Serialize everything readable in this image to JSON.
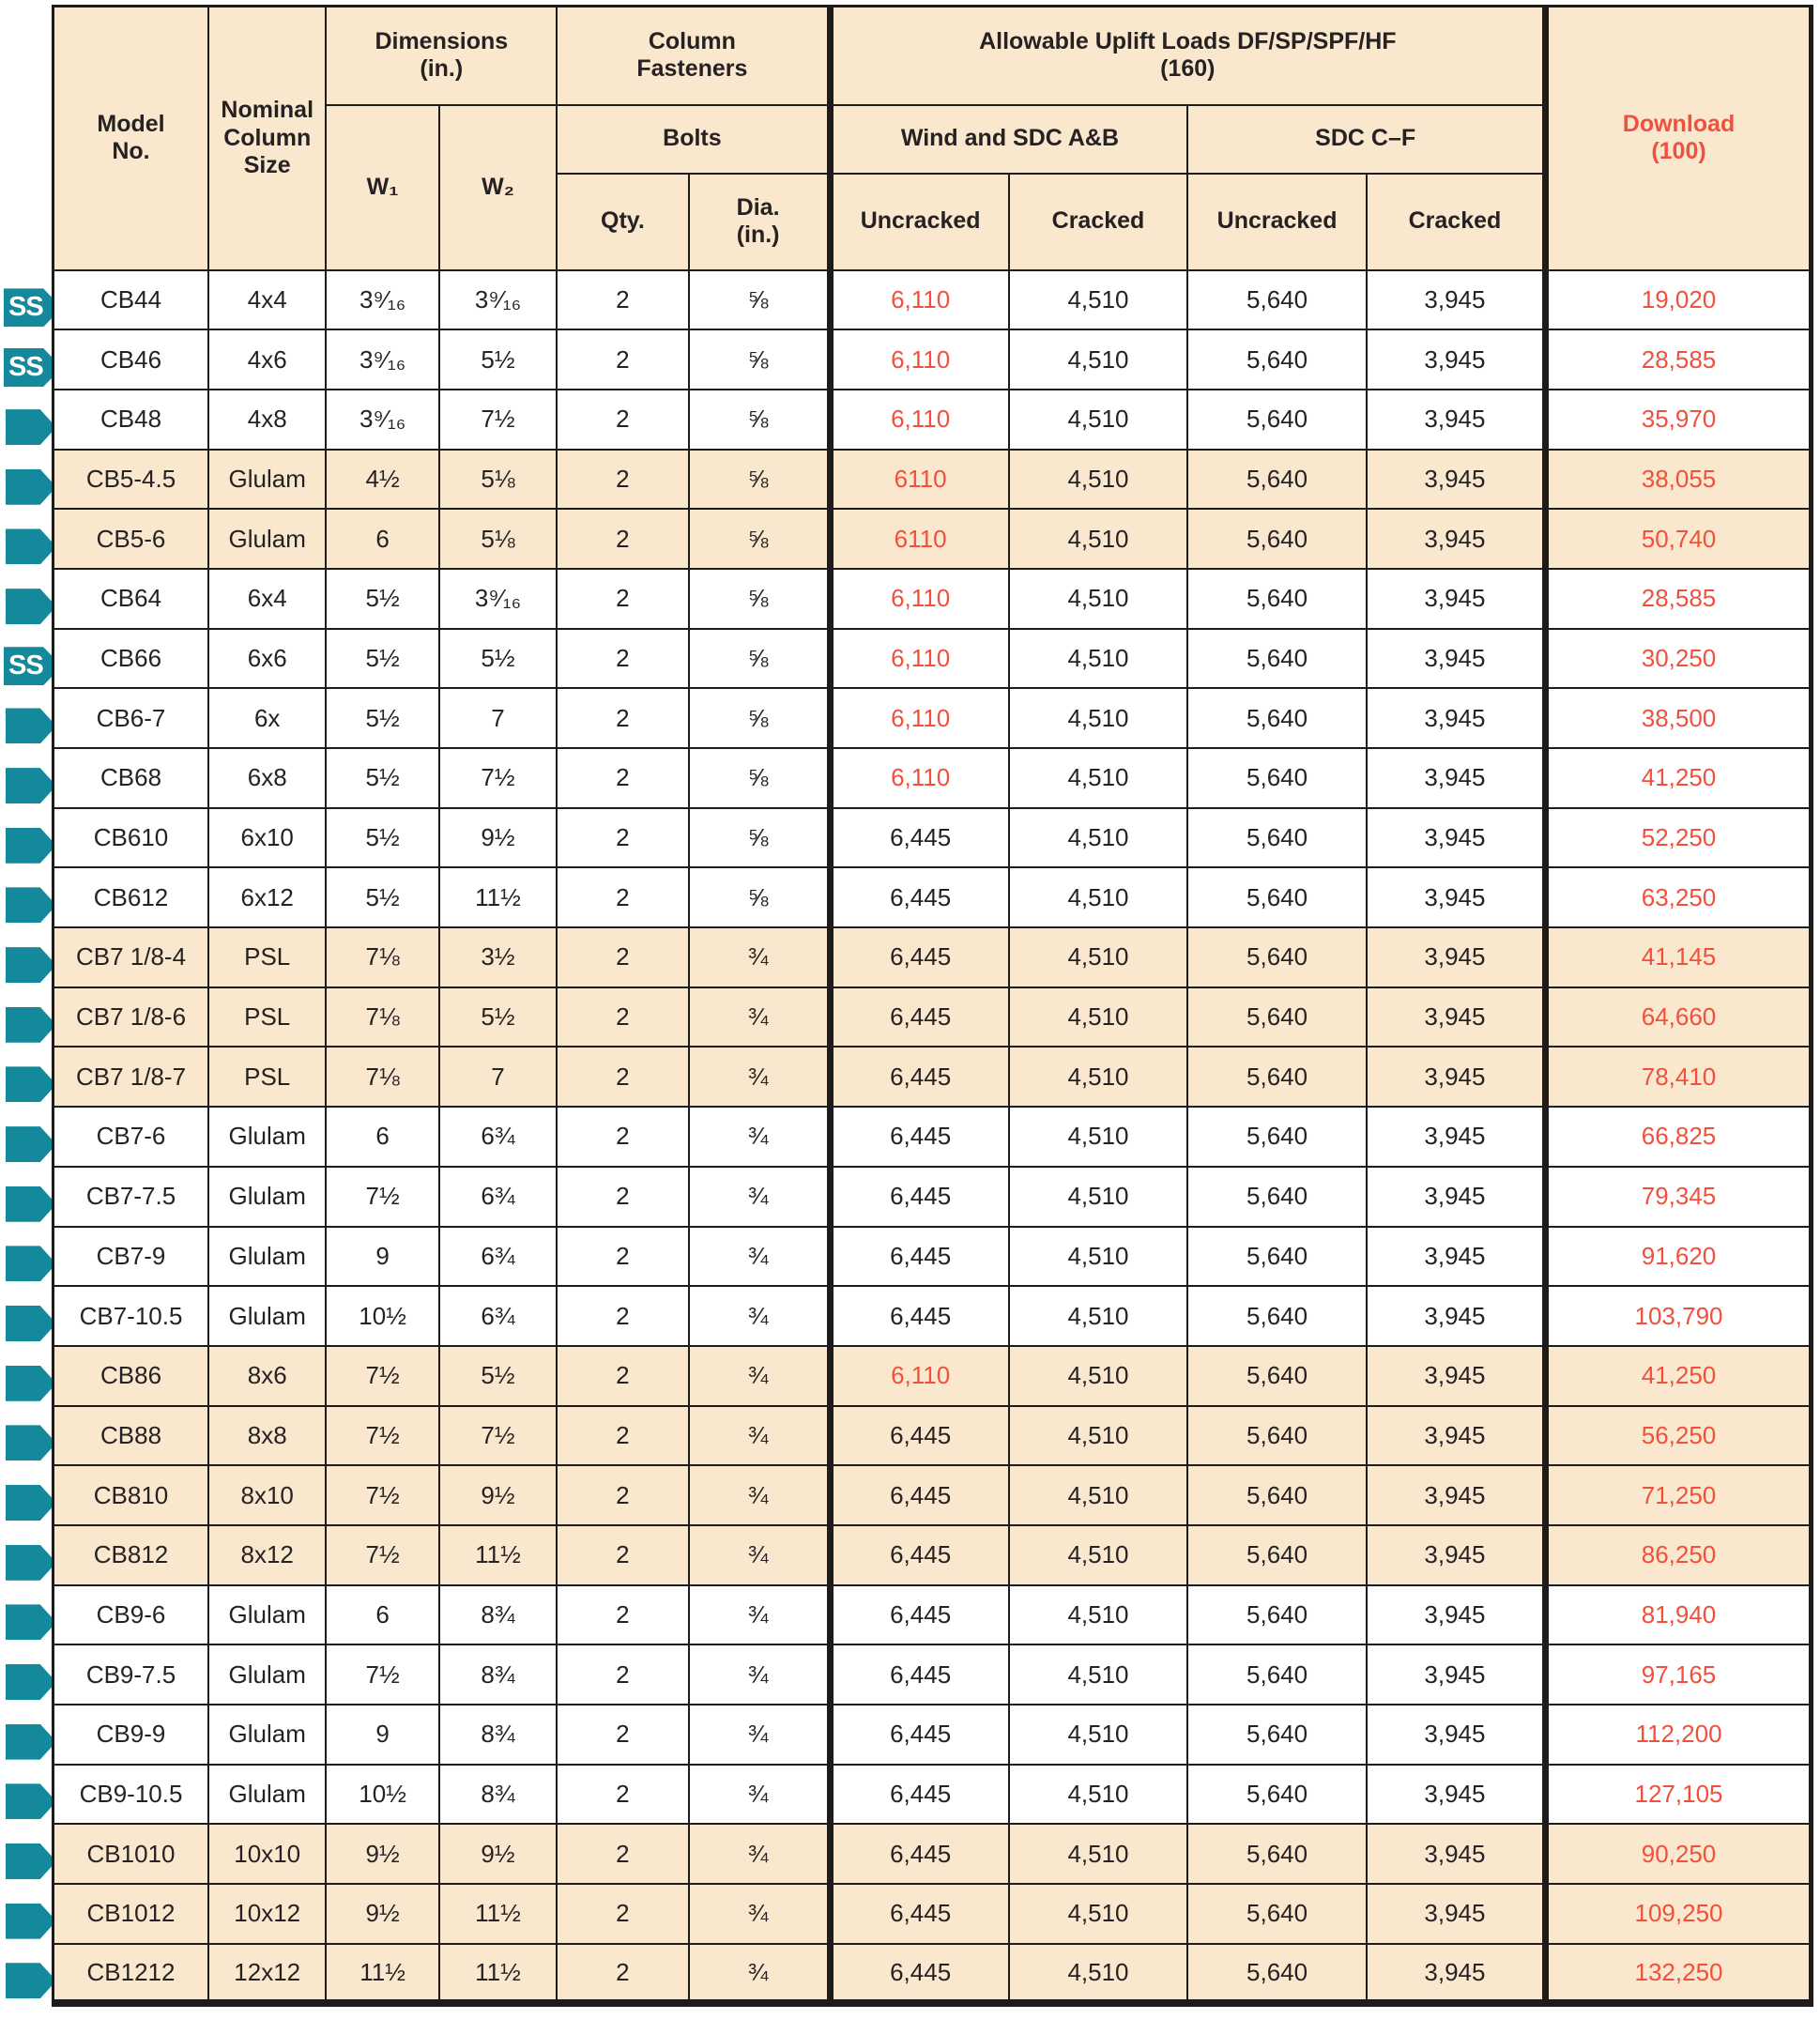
{
  "header": {
    "model_no": "Model\nNo.",
    "nominal_column_size": "Nominal\nColumn\nSize",
    "dimensions": "Dimensions\n(in.)",
    "w1": "W₁",
    "w2": "W₂",
    "column_fasteners": "Column\nFasteners",
    "bolts": "Bolts",
    "qty": "Qty.",
    "dia": "Dia.\n(in.)",
    "allowable_uplift": "Allowable Uplift Loads DF/SP/SPF/HF\n(160)",
    "wind_sdc_ab": "Wind and SDC A&B",
    "sdc_cf": "SDC C–F",
    "uncracked": "Uncracked",
    "cracked": "Cracked",
    "download": "Download\n(100)"
  },
  "legend": {
    "ss_label": "SS"
  },
  "colors": {
    "accent_teal": "#13899b",
    "accent_red": "#f0503c",
    "row_shade": "#fae8ce",
    "text": "#262223"
  },
  "rows": [
    {
      "icon": "ss",
      "shaded": false,
      "model": "CB44",
      "nominal": "4x4",
      "w1": "3⁹⁄₁₆",
      "w2": "3⁹⁄₁₆",
      "qty": "2",
      "dia": "⅝",
      "wind_uncracked": "6,110",
      "wind_uncracked_red": true,
      "wind_cracked": "4,510",
      "sdc_uncracked": "5,640",
      "sdc_cracked": "3,945",
      "download": "19,020"
    },
    {
      "icon": "ss",
      "shaded": false,
      "model": "CB46",
      "nominal": "4x6",
      "w1": "3⁹⁄₁₆",
      "w2": "5½",
      "qty": "2",
      "dia": "⅝",
      "wind_uncracked": "6,110",
      "wind_uncracked_red": true,
      "wind_cracked": "4,510",
      "sdc_uncracked": "5,640",
      "sdc_cracked": "3,945",
      "download": "28,585"
    },
    {
      "icon": "arrow",
      "shaded": false,
      "model": "CB48",
      "nominal": "4x8",
      "w1": "3⁹⁄₁₆",
      "w2": "7½",
      "qty": "2",
      "dia": "⅝",
      "wind_uncracked": "6,110",
      "wind_uncracked_red": true,
      "wind_cracked": "4,510",
      "sdc_uncracked": "5,640",
      "sdc_cracked": "3,945",
      "download": "35,970"
    },
    {
      "icon": "arrow",
      "shaded": true,
      "model": "CB5-4.5",
      "nominal": "Glulam",
      "w1": "4½",
      "w2": "5⅛",
      "qty": "2",
      "dia": "⅝",
      "wind_uncracked": "6110",
      "wind_uncracked_red": true,
      "wind_cracked": "4,510",
      "sdc_uncracked": "5,640",
      "sdc_cracked": "3,945",
      "download": "38,055"
    },
    {
      "icon": "arrow",
      "shaded": true,
      "model": "CB5-6",
      "nominal": "Glulam",
      "w1": "6",
      "w2": "5⅛",
      "qty": "2",
      "dia": "⅝",
      "wind_uncracked": "6110",
      "wind_uncracked_red": true,
      "wind_cracked": "4,510",
      "sdc_uncracked": "5,640",
      "sdc_cracked": "3,945",
      "download": "50,740"
    },
    {
      "icon": "arrow",
      "shaded": false,
      "model": "CB64",
      "nominal": "6x4",
      "w1": "5½",
      "w2": "3⁹⁄₁₆",
      "qty": "2",
      "dia": "⅝",
      "wind_uncracked": "6,110",
      "wind_uncracked_red": true,
      "wind_cracked": "4,510",
      "sdc_uncracked": "5,640",
      "sdc_cracked": "3,945",
      "download": "28,585"
    },
    {
      "icon": "ss",
      "shaded": false,
      "model": "CB66",
      "nominal": "6x6",
      "w1": "5½",
      "w2": "5½",
      "qty": "2",
      "dia": "⅝",
      "wind_uncracked": "6,110",
      "wind_uncracked_red": true,
      "wind_cracked": "4,510",
      "sdc_uncracked": "5,640",
      "sdc_cracked": "3,945",
      "download": "30,250"
    },
    {
      "icon": "arrow",
      "shaded": false,
      "model": "CB6-7",
      "nominal": "6x",
      "w1": "5½",
      "w2": "7",
      "qty": "2",
      "dia": "⅝",
      "wind_uncracked": "6,110",
      "wind_uncracked_red": true,
      "wind_cracked": "4,510",
      "sdc_uncracked": "5,640",
      "sdc_cracked": "3,945",
      "download": "38,500"
    },
    {
      "icon": "arrow",
      "shaded": false,
      "model": "CB68",
      "nominal": "6x8",
      "w1": "5½",
      "w2": "7½",
      "qty": "2",
      "dia": "⅝",
      "wind_uncracked": "6,110",
      "wind_uncracked_red": true,
      "wind_cracked": "4,510",
      "sdc_uncracked": "5,640",
      "sdc_cracked": "3,945",
      "download": "41,250"
    },
    {
      "icon": "arrow",
      "shaded": false,
      "model": "CB610",
      "nominal": "6x10",
      "w1": "5½",
      "w2": "9½",
      "qty": "2",
      "dia": "⅝",
      "wind_uncracked": "6,445",
      "wind_uncracked_red": false,
      "wind_cracked": "4,510",
      "sdc_uncracked": "5,640",
      "sdc_cracked": "3,945",
      "download": "52,250"
    },
    {
      "icon": "arrow",
      "shaded": false,
      "model": "CB612",
      "nominal": "6x12",
      "w1": "5½",
      "w2": "11½",
      "qty": "2",
      "dia": "⅝",
      "wind_uncracked": "6,445",
      "wind_uncracked_red": false,
      "wind_cracked": "4,510",
      "sdc_uncracked": "5,640",
      "sdc_cracked": "3,945",
      "download": "63,250"
    },
    {
      "icon": "arrow",
      "shaded": true,
      "model": "CB7 1/8-4",
      "nominal": "PSL",
      "w1": "7⅛",
      "w2": "3½",
      "qty": "2",
      "dia": "¾",
      "wind_uncracked": "6,445",
      "wind_uncracked_red": false,
      "wind_cracked": "4,510",
      "sdc_uncracked": "5,640",
      "sdc_cracked": "3,945",
      "download": "41,145"
    },
    {
      "icon": "arrow",
      "shaded": true,
      "model": "CB7 1/8-6",
      "nominal": "PSL",
      "w1": "7⅛",
      "w2": "5½",
      "qty": "2",
      "dia": "¾",
      "wind_uncracked": "6,445",
      "wind_uncracked_red": false,
      "wind_cracked": "4,510",
      "sdc_uncracked": "5,640",
      "sdc_cracked": "3,945",
      "download": "64,660"
    },
    {
      "icon": "arrow",
      "shaded": true,
      "model": "CB7 1/8-7",
      "nominal": "PSL",
      "w1": "7⅛",
      "w2": "7",
      "qty": "2",
      "dia": "¾",
      "wind_uncracked": "6,445",
      "wind_uncracked_red": false,
      "wind_cracked": "4,510",
      "sdc_uncracked": "5,640",
      "sdc_cracked": "3,945",
      "download": "78,410"
    },
    {
      "icon": "arrow",
      "shaded": false,
      "model": "CB7-6",
      "nominal": "Glulam",
      "w1": "6",
      "w2": "6¾",
      "qty": "2",
      "dia": "¾",
      "wind_uncracked": "6,445",
      "wind_uncracked_red": false,
      "wind_cracked": "4,510",
      "sdc_uncracked": "5,640",
      "sdc_cracked": "3,945",
      "download": "66,825"
    },
    {
      "icon": "arrow",
      "shaded": false,
      "model": "CB7-7.5",
      "nominal": "Glulam",
      "w1": "7½",
      "w2": "6¾",
      "qty": "2",
      "dia": "¾",
      "wind_uncracked": "6,445",
      "wind_uncracked_red": false,
      "wind_cracked": "4,510",
      "sdc_uncracked": "5,640",
      "sdc_cracked": "3,945",
      "download": "79,345"
    },
    {
      "icon": "arrow",
      "shaded": false,
      "model": "CB7-9",
      "nominal": "Glulam",
      "w1": "9",
      "w2": "6¾",
      "qty": "2",
      "dia": "¾",
      "wind_uncracked": "6,445",
      "wind_uncracked_red": false,
      "wind_cracked": "4,510",
      "sdc_uncracked": "5,640",
      "sdc_cracked": "3,945",
      "download": "91,620"
    },
    {
      "icon": "arrow",
      "shaded": false,
      "model": "CB7-10.5",
      "nominal": "Glulam",
      "w1": "10½",
      "w2": "6¾",
      "qty": "2",
      "dia": "¾",
      "wind_uncracked": "6,445",
      "wind_uncracked_red": false,
      "wind_cracked": "4,510",
      "sdc_uncracked": "5,640",
      "sdc_cracked": "3,945",
      "download": "103,790"
    },
    {
      "icon": "arrow",
      "shaded": true,
      "model": "CB86",
      "nominal": "8x6",
      "w1": "7½",
      "w2": "5½",
      "qty": "2",
      "dia": "¾",
      "wind_uncracked": "6,110",
      "wind_uncracked_red": true,
      "wind_cracked": "4,510",
      "sdc_uncracked": "5,640",
      "sdc_cracked": "3,945",
      "download": "41,250"
    },
    {
      "icon": "arrow",
      "shaded": true,
      "model": "CB88",
      "nominal": "8x8",
      "w1": "7½",
      "w2": "7½",
      "qty": "2",
      "dia": "¾",
      "wind_uncracked": "6,445",
      "wind_uncracked_red": false,
      "wind_cracked": "4,510",
      "sdc_uncracked": "5,640",
      "sdc_cracked": "3,945",
      "download": "56,250"
    },
    {
      "icon": "arrow",
      "shaded": true,
      "model": "CB810",
      "nominal": "8x10",
      "w1": "7½",
      "w2": "9½",
      "qty": "2",
      "dia": "¾",
      "wind_uncracked": "6,445",
      "wind_uncracked_red": false,
      "wind_cracked": "4,510",
      "sdc_uncracked": "5,640",
      "sdc_cracked": "3,945",
      "download": "71,250"
    },
    {
      "icon": "arrow",
      "shaded": true,
      "model": "CB812",
      "nominal": "8x12",
      "w1": "7½",
      "w2": "11½",
      "qty": "2",
      "dia": "¾",
      "wind_uncracked": "6,445",
      "wind_uncracked_red": false,
      "wind_cracked": "4,510",
      "sdc_uncracked": "5,640",
      "sdc_cracked": "3,945",
      "download": "86,250"
    },
    {
      "icon": "arrow",
      "shaded": false,
      "model": "CB9-6",
      "nominal": "Glulam",
      "w1": "6",
      "w2": "8¾",
      "qty": "2",
      "dia": "¾",
      "wind_uncracked": "6,445",
      "wind_uncracked_red": false,
      "wind_cracked": "4,510",
      "sdc_uncracked": "5,640",
      "sdc_cracked": "3,945",
      "download": "81,940"
    },
    {
      "icon": "arrow",
      "shaded": false,
      "model": "CB9-7.5",
      "nominal": "Glulam",
      "w1": "7½",
      "w2": "8¾",
      "qty": "2",
      "dia": "¾",
      "wind_uncracked": "6,445",
      "wind_uncracked_red": false,
      "wind_cracked": "4,510",
      "sdc_uncracked": "5,640",
      "sdc_cracked": "3,945",
      "download": "97,165"
    },
    {
      "icon": "arrow",
      "shaded": false,
      "model": "CB9-9",
      "nominal": "Glulam",
      "w1": "9",
      "w2": "8¾",
      "qty": "2",
      "dia": "¾",
      "wind_uncracked": "6,445",
      "wind_uncracked_red": false,
      "wind_cracked": "4,510",
      "sdc_uncracked": "5,640",
      "sdc_cracked": "3,945",
      "download": "112,200"
    },
    {
      "icon": "arrow",
      "shaded": false,
      "model": "CB9-10.5",
      "nominal": "Glulam",
      "w1": "10½",
      "w2": "8¾",
      "qty": "2",
      "dia": "¾",
      "wind_uncracked": "6,445",
      "wind_uncracked_red": false,
      "wind_cracked": "4,510",
      "sdc_uncracked": "5,640",
      "sdc_cracked": "3,945",
      "download": "127,105"
    },
    {
      "icon": "arrow",
      "shaded": true,
      "model": "CB1010",
      "nominal": "10x10",
      "w1": "9½",
      "w2": "9½",
      "qty": "2",
      "dia": "¾",
      "wind_uncracked": "6,445",
      "wind_uncracked_red": false,
      "wind_cracked": "4,510",
      "sdc_uncracked": "5,640",
      "sdc_cracked": "3,945",
      "download": "90,250"
    },
    {
      "icon": "arrow",
      "shaded": true,
      "model": "CB1012",
      "nominal": "10x12",
      "w1": "9½",
      "w2": "11½",
      "qty": "2",
      "dia": "¾",
      "wind_uncracked": "6,445",
      "wind_uncracked_red": false,
      "wind_cracked": "4,510",
      "sdc_uncracked": "5,640",
      "sdc_cracked": "3,945",
      "download": "109,250"
    },
    {
      "icon": "arrow",
      "shaded": true,
      "model": "CB1212",
      "nominal": "12x12",
      "w1": "11½",
      "w2": "11½",
      "qty": "2",
      "dia": "¾",
      "wind_uncracked": "6,445",
      "wind_uncracked_red": false,
      "wind_cracked": "4,510",
      "sdc_uncracked": "5,640",
      "sdc_cracked": "3,945",
      "download": "132,250"
    }
  ]
}
